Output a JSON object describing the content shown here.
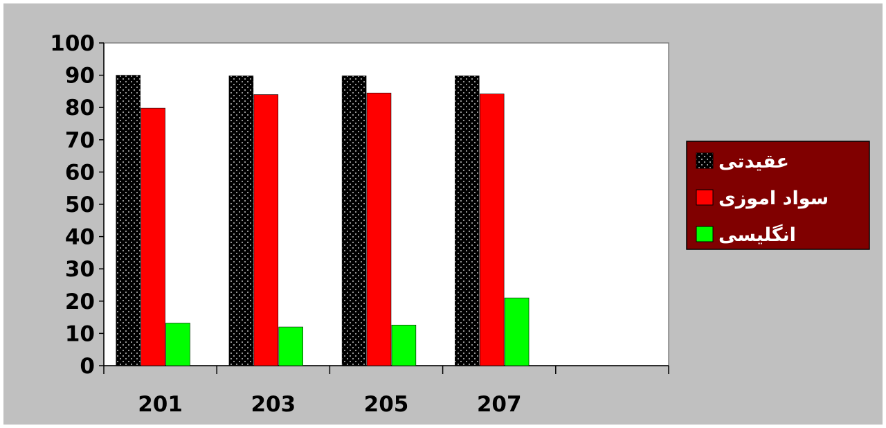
{
  "chart_data": {
    "type": "bar",
    "categories": [
      "201",
      "203",
      "205",
      "207",
      ""
    ],
    "series": [
      {
        "name": "عقیدتی",
        "values": [
          90,
          89.8,
          89.8,
          89.8,
          null
        ],
        "color": "#000000",
        "pattern": "dotted"
      },
      {
        "name": "سواد اموزی",
        "values": [
          79.8,
          84,
          84.5,
          84.2,
          null
        ],
        "color": "#ff0000"
      },
      {
        "name": "انگلیسی",
        "values": [
          13.2,
          12,
          12.6,
          21,
          null
        ],
        "color": "#00ff00"
      }
    ],
    "y_ticks": [
      "0",
      "10",
      "20",
      "30",
      "40",
      "50",
      "60",
      "70",
      "80",
      "90",
      "100"
    ],
    "ylim": [
      0,
      100
    ],
    "grid": false,
    "legend_position": "right",
    "colors": {
      "figure_background": "#c0c0c0",
      "plot_background": "#ffffff",
      "legend_background": "#800000",
      "legend_text": "#ffffff"
    }
  }
}
